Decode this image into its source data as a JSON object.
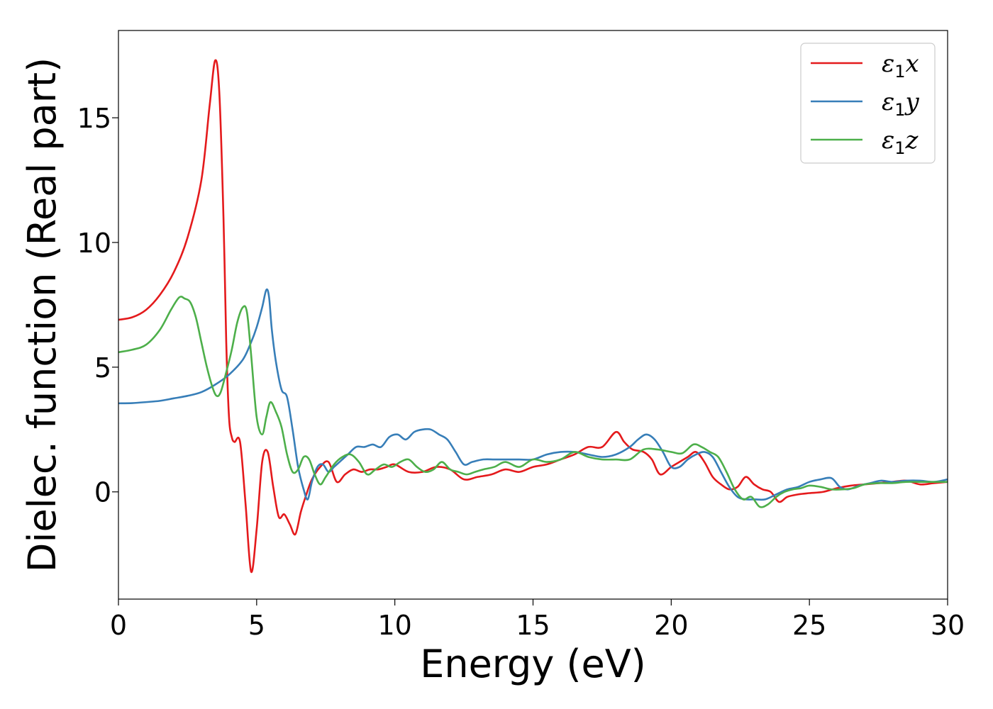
{
  "chart_data": {
    "type": "line",
    "xlabel": "Energy (eV)",
    "ylabel": "Dielec. function (Real part)",
    "xlim": [
      0,
      30
    ],
    "ylim": [
      -4.3,
      18.5
    ],
    "xticks": [
      0,
      5,
      10,
      15,
      20,
      25,
      30
    ],
    "yticks": [
      0,
      5,
      10,
      15
    ],
    "grid": false,
    "legend_position": "top-right",
    "series": [
      {
        "name": "ε1x",
        "legend_main": "ε",
        "legend_sub": "1",
        "legend_suffix": "x",
        "color": "#e41a1c",
        "x": [
          0,
          0.5,
          1.0,
          1.5,
          2.0,
          2.5,
          3.0,
          3.3,
          3.5,
          3.65,
          3.8,
          3.9,
          4.0,
          4.1,
          4.2,
          4.4,
          4.6,
          4.8,
          5.0,
          5.2,
          5.4,
          5.6,
          5.8,
          6.0,
          6.2,
          6.4,
          6.6,
          6.8,
          7.0,
          7.3,
          7.6,
          7.9,
          8.2,
          8.5,
          8.8,
          9.1,
          9.4,
          9.7,
          10.0,
          10.5,
          11.0,
          11.5,
          12.0,
          12.5,
          13.0,
          13.5,
          14.0,
          14.5,
          15.0,
          15.5,
          16.0,
          16.5,
          17.0,
          17.5,
          18.0,
          18.3,
          18.6,
          19.0,
          19.3,
          19.6,
          20.0,
          20.3,
          20.6,
          20.9,
          21.2,
          21.5,
          21.8,
          22.1,
          22.4,
          22.7,
          23.0,
          23.3,
          23.6,
          23.9,
          24.2,
          24.6,
          25.0,
          25.5,
          26.0,
          26.5,
          27.0,
          27.5,
          28.0,
          28.5,
          29.0,
          29.5,
          30.0
        ],
        "y": [
          6.9,
          7.0,
          7.3,
          7.9,
          8.8,
          10.2,
          12.5,
          15.5,
          17.3,
          16.0,
          11.0,
          6.0,
          3.0,
          2.2,
          2.0,
          2.0,
          -0.5,
          -3.2,
          -1.5,
          1.2,
          1.6,
          0.2,
          -1.0,
          -0.9,
          -1.3,
          -1.7,
          -0.8,
          -0.1,
          0.5,
          1.0,
          1.2,
          0.4,
          0.7,
          0.9,
          0.8,
          0.9,
          0.9,
          1.0,
          1.1,
          0.8,
          0.8,
          1.0,
          0.9,
          0.5,
          0.6,
          0.7,
          0.9,
          0.8,
          1.0,
          1.1,
          1.3,
          1.5,
          1.8,
          1.8,
          2.4,
          2.0,
          1.7,
          1.6,
          1.3,
          0.7,
          1.0,
          1.2,
          1.4,
          1.6,
          1.2,
          0.6,
          0.3,
          0.1,
          0.2,
          0.6,
          0.3,
          0.1,
          0.0,
          -0.4,
          -0.2,
          -0.1,
          -0.05,
          0.0,
          0.15,
          0.25,
          0.3,
          0.35,
          0.4,
          0.45,
          0.3,
          0.35,
          0.4
        ]
      },
      {
        "name": "ε1y",
        "legend_main": "ε",
        "legend_sub": "1",
        "legend_suffix": "y",
        "color": "#377eb8",
        "x": [
          0,
          0.5,
          1.0,
          1.5,
          2.0,
          2.5,
          3.0,
          3.5,
          4.0,
          4.5,
          4.8,
          5.0,
          5.2,
          5.35,
          5.45,
          5.55,
          5.7,
          5.9,
          6.1,
          6.3,
          6.5,
          6.7,
          6.85,
          7.0,
          7.2,
          7.4,
          7.6,
          7.8,
          8.0,
          8.3,
          8.6,
          8.9,
          9.2,
          9.5,
          9.8,
          10.1,
          10.4,
          10.7,
          11.0,
          11.3,
          11.6,
          11.9,
          12.2,
          12.5,
          12.8,
          13.2,
          13.6,
          14.0,
          14.5,
          15.0,
          15.5,
          16.0,
          16.5,
          17.0,
          17.5,
          18.0,
          18.5,
          18.8,
          19.1,
          19.4,
          19.7,
          20.0,
          20.3,
          20.6,
          20.9,
          21.2,
          21.5,
          21.8,
          22.1,
          22.4,
          22.7,
          23.0,
          23.4,
          23.8,
          24.2,
          24.6,
          25.0,
          25.4,
          25.8,
          26.1,
          26.4,
          26.8,
          27.2,
          27.6,
          28.0,
          28.5,
          29.0,
          29.5,
          30.0
        ],
        "y": [
          3.55,
          3.56,
          3.6,
          3.65,
          3.75,
          3.85,
          4.0,
          4.3,
          4.7,
          5.3,
          6.0,
          6.6,
          7.4,
          8.1,
          7.8,
          6.5,
          5.2,
          4.1,
          3.8,
          2.5,
          1.0,
          0.1,
          -0.3,
          0.4,
          1.0,
          1.1,
          0.8,
          1.0,
          1.2,
          1.5,
          1.8,
          1.8,
          1.9,
          1.8,
          2.2,
          2.3,
          2.1,
          2.4,
          2.5,
          2.5,
          2.3,
          2.1,
          1.6,
          1.1,
          1.2,
          1.3,
          1.3,
          1.3,
          1.3,
          1.3,
          1.5,
          1.6,
          1.6,
          1.5,
          1.4,
          1.5,
          1.8,
          2.1,
          2.3,
          2.1,
          1.6,
          1.0,
          1.0,
          1.3,
          1.5,
          1.6,
          1.4,
          0.8,
          0.2,
          -0.2,
          -0.3,
          -0.3,
          -0.3,
          -0.1,
          0.1,
          0.2,
          0.4,
          0.5,
          0.55,
          0.2,
          0.1,
          0.25,
          0.35,
          0.45,
          0.4,
          0.45,
          0.45,
          0.4,
          0.5
        ]
      },
      {
        "name": "ε1z",
        "legend_main": "ε",
        "legend_sub": "1",
        "legend_suffix": "z",
        "color": "#4daf4a",
        "x": [
          0,
          0.5,
          1.0,
          1.5,
          1.9,
          2.2,
          2.4,
          2.6,
          2.8,
          3.0,
          3.2,
          3.4,
          3.55,
          3.7,
          3.9,
          4.1,
          4.3,
          4.5,
          4.65,
          4.8,
          5.0,
          5.2,
          5.35,
          5.5,
          5.7,
          5.9,
          6.1,
          6.3,
          6.5,
          6.7,
          6.9,
          7.1,
          7.3,
          7.5,
          7.8,
          8.1,
          8.4,
          8.7,
          9.0,
          9.3,
          9.6,
          9.9,
          10.2,
          10.5,
          10.8,
          11.1,
          11.4,
          11.7,
          12.0,
          12.3,
          12.6,
          12.9,
          13.2,
          13.6,
          14.0,
          14.5,
          15.0,
          15.5,
          16.0,
          16.5,
          17.0,
          17.5,
          18.0,
          18.5,
          19.0,
          19.5,
          20.0,
          20.4,
          20.8,
          21.1,
          21.4,
          21.7,
          22.0,
          22.3,
          22.6,
          22.9,
          23.2,
          23.5,
          23.8,
          24.1,
          24.4,
          24.7,
          25.0,
          25.4,
          25.8,
          26.2,
          26.6,
          27.0,
          27.5,
          28.0,
          28.5,
          29.0,
          29.5,
          30.0
        ],
        "y": [
          5.6,
          5.7,
          5.9,
          6.5,
          7.3,
          7.8,
          7.75,
          7.6,
          7.0,
          6.0,
          5.0,
          4.2,
          3.85,
          4.0,
          4.8,
          5.7,
          6.8,
          7.4,
          7.2,
          5.5,
          3.0,
          2.3,
          3.0,
          3.6,
          3.2,
          2.6,
          1.5,
          0.8,
          0.9,
          1.4,
          1.3,
          0.7,
          0.3,
          0.6,
          1.1,
          1.4,
          1.5,
          1.2,
          0.7,
          0.9,
          1.1,
          1.0,
          1.2,
          1.3,
          1.0,
          0.8,
          0.9,
          1.2,
          0.9,
          0.8,
          0.7,
          0.8,
          0.9,
          1.0,
          1.2,
          1.0,
          1.3,
          1.2,
          1.3,
          1.6,
          1.4,
          1.3,
          1.3,
          1.3,
          1.7,
          1.7,
          1.6,
          1.55,
          1.9,
          1.8,
          1.6,
          1.4,
          0.8,
          0.1,
          -0.3,
          -0.2,
          -0.6,
          -0.5,
          -0.2,
          0.0,
          0.1,
          0.15,
          0.25,
          0.2,
          0.1,
          0.1,
          0.15,
          0.3,
          0.35,
          0.35,
          0.4,
          0.4,
          0.4,
          0.4
        ]
      }
    ]
  }
}
